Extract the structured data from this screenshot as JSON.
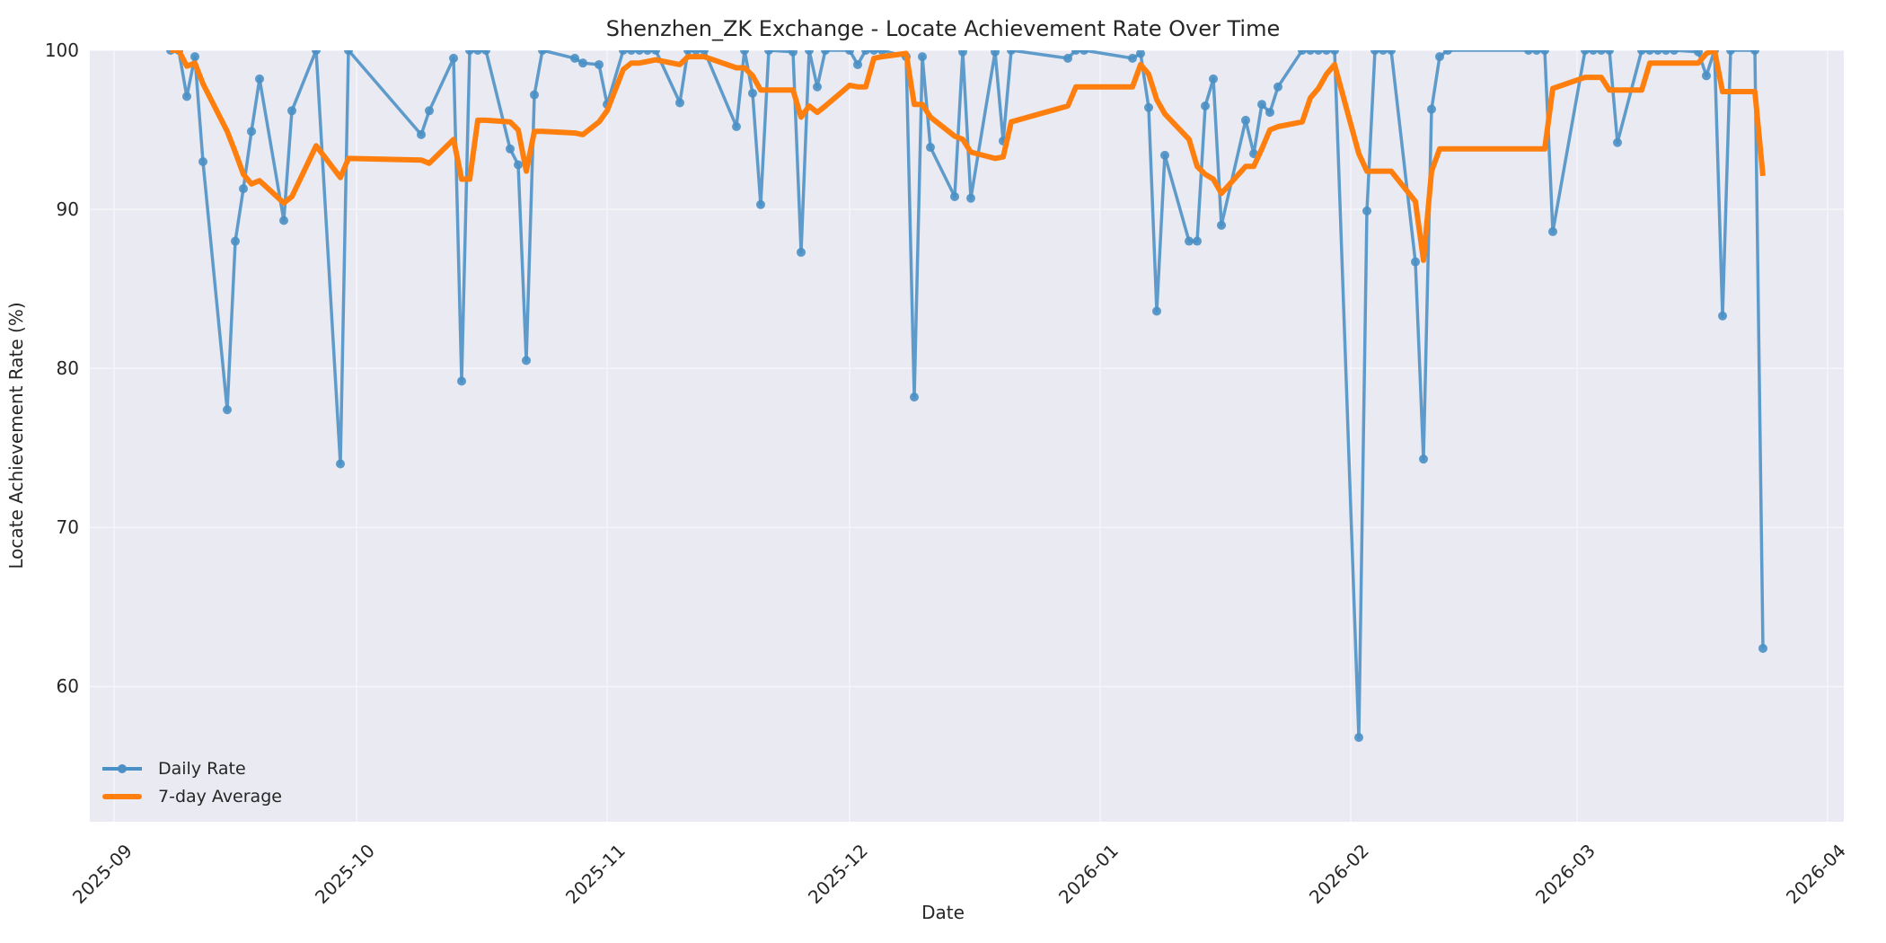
{
  "chart_data": {
    "type": "line",
    "title": "Shenzhen_ZK Exchange - Locate Achievement Rate Over Time",
    "xlabel": "Date",
    "ylabel": "Locate Achievement Rate (%)",
    "ylim": [
      51.5,
      100
    ],
    "xlim": [
      "2025-08-29",
      "2026-04-03"
    ],
    "grid": true,
    "legend_position": "lower left",
    "yticks": [
      60,
      70,
      80,
      90,
      100
    ],
    "xticks": [
      "2025-09",
      "2025-10",
      "2025-11",
      "2025-12",
      "2026-01",
      "2026-02",
      "2026-03",
      "2026-04"
    ],
    "colors": {
      "daily": "#4a90c4",
      "avg": "#ff7f0e",
      "background": "#eaeaf2",
      "grid": "#f5f5f9"
    },
    "series": [
      {
        "name": "Daily Rate",
        "marker": "circle",
        "points": [
          [
            "2025-09-08",
            100
          ],
          [
            "2025-09-09",
            100
          ],
          [
            "2025-09-10",
            97.1
          ],
          [
            "2025-09-11",
            99.6
          ],
          [
            "2025-09-12",
            93.0
          ],
          [
            "2025-09-15",
            77.4
          ],
          [
            "2025-09-16",
            88.0
          ],
          [
            "2025-09-17",
            91.3
          ],
          [
            "2025-09-18",
            94.9
          ],
          [
            "2025-09-19",
            98.2
          ],
          [
            "2025-09-22",
            89.3
          ],
          [
            "2025-09-23",
            96.2
          ],
          [
            "2025-09-26",
            100
          ],
          [
            "2025-09-29",
            74.0
          ],
          [
            "2025-09-30",
            100
          ],
          [
            "2025-10-09",
            94.7
          ],
          [
            "2025-10-10",
            96.2
          ],
          [
            "2025-10-13",
            99.5
          ],
          [
            "2025-10-14",
            79.2
          ],
          [
            "2025-10-15",
            100
          ],
          [
            "2025-10-16",
            100
          ],
          [
            "2025-10-17",
            100
          ],
          [
            "2025-10-20",
            93.8
          ],
          [
            "2025-10-21",
            92.8
          ],
          [
            "2025-10-22",
            80.5
          ],
          [
            "2025-10-23",
            97.2
          ],
          [
            "2025-10-24",
            100
          ],
          [
            "2025-10-28",
            99.5
          ],
          [
            "2025-10-29",
            99.2
          ],
          [
            "2025-10-31",
            99.1
          ],
          [
            "2025-11-01",
            96.6
          ],
          [
            "2025-11-03",
            100
          ],
          [
            "2025-11-04",
            100
          ],
          [
            "2025-11-05",
            100
          ],
          [
            "2025-11-06",
            100
          ],
          [
            "2025-11-07",
            100
          ],
          [
            "2025-11-10",
            96.7
          ],
          [
            "2025-11-11",
            100
          ],
          [
            "2025-11-12",
            100
          ],
          [
            "2025-11-13",
            100
          ],
          [
            "2025-11-17",
            95.2
          ],
          [
            "2025-11-18",
            100
          ],
          [
            "2025-11-19",
            97.3
          ],
          [
            "2025-11-20",
            90.3
          ],
          [
            "2025-11-21",
            100
          ],
          [
            "2025-11-24",
            99.9
          ],
          [
            "2025-11-25",
            87.3
          ],
          [
            "2025-11-26",
            100
          ],
          [
            "2025-11-27",
            97.7
          ],
          [
            "2025-11-28",
            100
          ],
          [
            "2025-12-01",
            100
          ],
          [
            "2025-12-02",
            99.1
          ],
          [
            "2025-12-03",
            100
          ],
          [
            "2025-12-04",
            100
          ],
          [
            "2025-12-05",
            100
          ],
          [
            "2025-12-08",
            99.6
          ],
          [
            "2025-12-09",
            78.2
          ],
          [
            "2025-12-10",
            99.6
          ],
          [
            "2025-12-11",
            93.9
          ],
          [
            "2025-12-14",
            90.8
          ],
          [
            "2025-12-15",
            99.9
          ],
          [
            "2025-12-16",
            90.7
          ],
          [
            "2025-12-19",
            99.9
          ],
          [
            "2025-12-20",
            94.3
          ],
          [
            "2025-12-21",
            100
          ],
          [
            "2025-12-28",
            99.5
          ],
          [
            "2025-12-29",
            100
          ],
          [
            "2025-12-30",
            100
          ],
          [
            "2026-01-05",
            99.5
          ],
          [
            "2026-01-06",
            99.8
          ],
          [
            "2026-01-07",
            96.4
          ],
          [
            "2026-01-08",
            83.6
          ],
          [
            "2026-01-09",
            93.4
          ],
          [
            "2026-01-12",
            88.0
          ],
          [
            "2026-01-13",
            88.0
          ],
          [
            "2026-01-14",
            96.5
          ],
          [
            "2026-01-15",
            98.2
          ],
          [
            "2026-01-16",
            89.0
          ],
          [
            "2026-01-19",
            95.6
          ],
          [
            "2026-01-20",
            93.5
          ],
          [
            "2026-01-21",
            96.6
          ],
          [
            "2026-01-22",
            96.1
          ],
          [
            "2026-01-23",
            97.7
          ],
          [
            "2026-01-26",
            100
          ],
          [
            "2026-01-27",
            100
          ],
          [
            "2026-01-28",
            100
          ],
          [
            "2026-01-29",
            100
          ],
          [
            "2026-01-30",
            100
          ],
          [
            "2026-02-02",
            56.8
          ],
          [
            "2026-02-03",
            89.9
          ],
          [
            "2026-02-04",
            100
          ],
          [
            "2026-02-05",
            100
          ],
          [
            "2026-02-06",
            100
          ],
          [
            "2026-02-09",
            86.7
          ],
          [
            "2026-02-10",
            74.3
          ],
          [
            "2026-02-11",
            96.3
          ],
          [
            "2026-02-12",
            99.6
          ],
          [
            "2026-02-13",
            100
          ],
          [
            "2026-02-23",
            100
          ],
          [
            "2026-02-24",
            100
          ],
          [
            "2026-02-25",
            100
          ],
          [
            "2026-02-26",
            88.6
          ],
          [
            "2026-03-02",
            100
          ],
          [
            "2026-03-03",
            100
          ],
          [
            "2026-03-04",
            100
          ],
          [
            "2026-03-05",
            100
          ],
          [
            "2026-03-06",
            94.2
          ],
          [
            "2026-03-09",
            100
          ],
          [
            "2026-03-10",
            100
          ],
          [
            "2026-03-11",
            100
          ],
          [
            "2026-03-12",
            100
          ],
          [
            "2026-03-13",
            100
          ],
          [
            "2026-03-16",
            99.9
          ],
          [
            "2026-03-17",
            98.4
          ],
          [
            "2026-03-18",
            100
          ],
          [
            "2026-03-19",
            83.3
          ],
          [
            "2026-03-20",
            100
          ],
          [
            "2026-03-23",
            100
          ],
          [
            "2026-03-24",
            62.4
          ]
        ]
      },
      {
        "name": "7-day Average",
        "marker": "none",
        "points": [
          [
            "2025-09-08",
            100
          ],
          [
            "2025-09-09",
            100
          ],
          [
            "2025-09-10",
            99.0
          ],
          [
            "2025-09-11",
            99.2
          ],
          [
            "2025-09-12",
            97.9
          ],
          [
            "2025-09-15",
            94.9
          ],
          [
            "2025-09-16",
            93.6
          ],
          [
            "2025-09-17",
            92.2
          ],
          [
            "2025-09-18",
            91.6
          ],
          [
            "2025-09-19",
            91.8
          ],
          [
            "2025-09-22",
            90.4
          ],
          [
            "2025-09-23",
            90.8
          ],
          [
            "2025-09-26",
            94.0
          ],
          [
            "2025-09-29",
            92.0
          ],
          [
            "2025-09-30",
            93.2
          ],
          [
            "2025-10-09",
            93.1
          ],
          [
            "2025-10-10",
            92.9
          ],
          [
            "2025-10-13",
            94.4
          ],
          [
            "2025-10-14",
            91.9
          ],
          [
            "2025-10-15",
            91.9
          ],
          [
            "2025-10-16",
            95.6
          ],
          [
            "2025-10-17",
            95.6
          ],
          [
            "2025-10-20",
            95.5
          ],
          [
            "2025-10-21",
            95.0
          ],
          [
            "2025-10-22",
            92.4
          ],
          [
            "2025-10-23",
            94.9
          ],
          [
            "2025-10-24",
            94.9
          ],
          [
            "2025-10-28",
            94.8
          ],
          [
            "2025-10-29",
            94.7
          ],
          [
            "2025-10-31",
            95.5
          ],
          [
            "2025-11-01",
            96.2
          ],
          [
            "2025-11-03",
            98.8
          ],
          [
            "2025-11-04",
            99.2
          ],
          [
            "2025-11-05",
            99.2
          ],
          [
            "2025-11-06",
            99.3
          ],
          [
            "2025-11-07",
            99.4
          ],
          [
            "2025-11-10",
            99.1
          ],
          [
            "2025-11-11",
            99.6
          ],
          [
            "2025-11-12",
            99.6
          ],
          [
            "2025-11-13",
            99.6
          ],
          [
            "2025-11-17",
            98.9
          ],
          [
            "2025-11-18",
            98.9
          ],
          [
            "2025-11-19",
            98.4
          ],
          [
            "2025-11-20",
            97.5
          ],
          [
            "2025-11-21",
            97.5
          ],
          [
            "2025-11-24",
            97.5
          ],
          [
            "2025-11-25",
            95.8
          ],
          [
            "2025-11-26",
            96.5
          ],
          [
            "2025-11-27",
            96.1
          ],
          [
            "2025-11-28",
            96.5
          ],
          [
            "2025-12-01",
            97.8
          ],
          [
            "2025-12-02",
            97.7
          ],
          [
            "2025-12-03",
            97.7
          ],
          [
            "2025-12-04",
            99.5
          ],
          [
            "2025-12-05",
            99.6
          ],
          [
            "2025-12-08",
            99.8
          ],
          [
            "2025-12-09",
            96.6
          ],
          [
            "2025-12-10",
            96.6
          ],
          [
            "2025-12-11",
            95.8
          ],
          [
            "2025-12-14",
            94.6
          ],
          [
            "2025-12-15",
            94.4
          ],
          [
            "2025-12-16",
            93.6
          ],
          [
            "2025-12-19",
            93.2
          ],
          [
            "2025-12-20",
            93.3
          ],
          [
            "2025-12-21",
            95.5
          ],
          [
            "2025-12-28",
            96.5
          ],
          [
            "2025-12-29",
            97.7
          ],
          [
            "2025-12-30",
            97.7
          ],
          [
            "2026-01-05",
            97.7
          ],
          [
            "2026-01-06",
            99.1
          ],
          [
            "2026-01-07",
            98.5
          ],
          [
            "2026-01-08",
            96.9
          ],
          [
            "2026-01-09",
            96.0
          ],
          [
            "2026-01-12",
            94.4
          ],
          [
            "2026-01-13",
            92.7
          ],
          [
            "2026-01-14",
            92.2
          ],
          [
            "2026-01-15",
            91.9
          ],
          [
            "2026-01-16",
            91.0
          ],
          [
            "2026-01-19",
            92.7
          ],
          [
            "2026-01-20",
            92.7
          ],
          [
            "2026-01-21",
            93.8
          ],
          [
            "2026-01-22",
            95.0
          ],
          [
            "2026-01-23",
            95.2
          ],
          [
            "2026-01-26",
            95.5
          ],
          [
            "2026-01-27",
            97.0
          ],
          [
            "2026-01-28",
            97.6
          ],
          [
            "2026-01-29",
            98.5
          ],
          [
            "2026-01-30",
            99.1
          ],
          [
            "2026-02-02",
            93.5
          ],
          [
            "2026-02-03",
            92.4
          ],
          [
            "2026-02-04",
            92.4
          ],
          [
            "2026-02-05",
            92.4
          ],
          [
            "2026-02-06",
            92.4
          ],
          [
            "2026-02-09",
            90.5
          ],
          [
            "2026-02-10",
            86.8
          ],
          [
            "2026-02-11",
            92.4
          ],
          [
            "2026-02-12",
            93.8
          ],
          [
            "2026-02-13",
            93.8
          ],
          [
            "2026-02-23",
            93.8
          ],
          [
            "2026-02-24",
            93.8
          ],
          [
            "2026-02-25",
            93.8
          ],
          [
            "2026-02-26",
            97.6
          ],
          [
            "2026-03-02",
            98.3
          ],
          [
            "2026-03-03",
            98.3
          ],
          [
            "2026-03-04",
            98.3
          ],
          [
            "2026-03-05",
            97.5
          ],
          [
            "2026-03-06",
            97.5
          ],
          [
            "2026-03-09",
            97.5
          ],
          [
            "2026-03-10",
            99.2
          ],
          [
            "2026-03-11",
            99.2
          ],
          [
            "2026-03-12",
            99.2
          ],
          [
            "2026-03-13",
            99.2
          ],
          [
            "2026-03-16",
            99.2
          ],
          [
            "2026-03-17",
            99.8
          ],
          [
            "2026-03-18",
            100
          ],
          [
            "2026-03-19",
            97.4
          ],
          [
            "2026-03-20",
            97.4
          ],
          [
            "2026-03-23",
            97.4
          ],
          [
            "2026-03-24",
            92.1
          ]
        ]
      }
    ]
  },
  "legend": {
    "items": [
      {
        "label": "Daily Rate"
      },
      {
        "label": "7-day Average"
      }
    ]
  }
}
